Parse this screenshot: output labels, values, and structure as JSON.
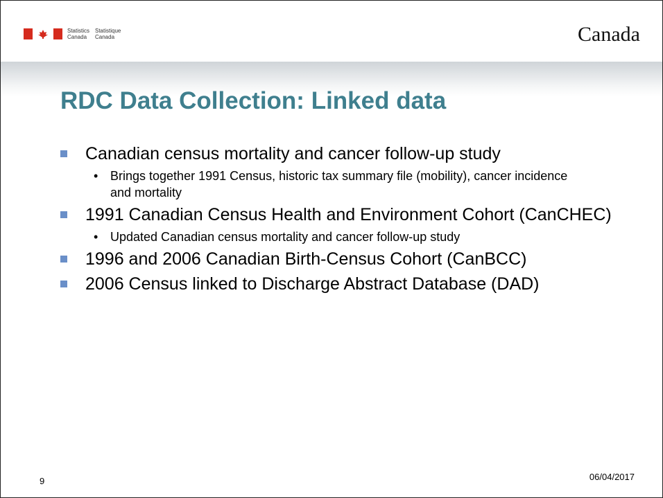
{
  "header": {
    "agency_en": [
      "Statistics",
      "Canada"
    ],
    "agency_fr": [
      "Statistique",
      "Canada"
    ],
    "wordmark": "Canada"
  },
  "slide": {
    "title": "RDC Data Collection: Linked data",
    "bullets": [
      {
        "text": "Canadian census mortality and cancer follow-up study",
        "sub": [
          "Brings together 1991 Census, historic tax summary file (mobility), cancer incidence and mortality"
        ]
      },
      {
        "text": "1991 Canadian Census Health and Environment Cohort (CanCHEC)",
        "sub": [
          "Updated Canadian census mortality and cancer follow-up study"
        ]
      },
      {
        "text": "1996 and 2006 Canadian Birth-Census Cohort (CanBCC)",
        "sub": []
      },
      {
        "text": "2006 Census linked to Discharge Abstract Database (DAD)",
        "sub": []
      }
    ]
  },
  "footer": {
    "page": "9",
    "date": "06/04/2017"
  }
}
